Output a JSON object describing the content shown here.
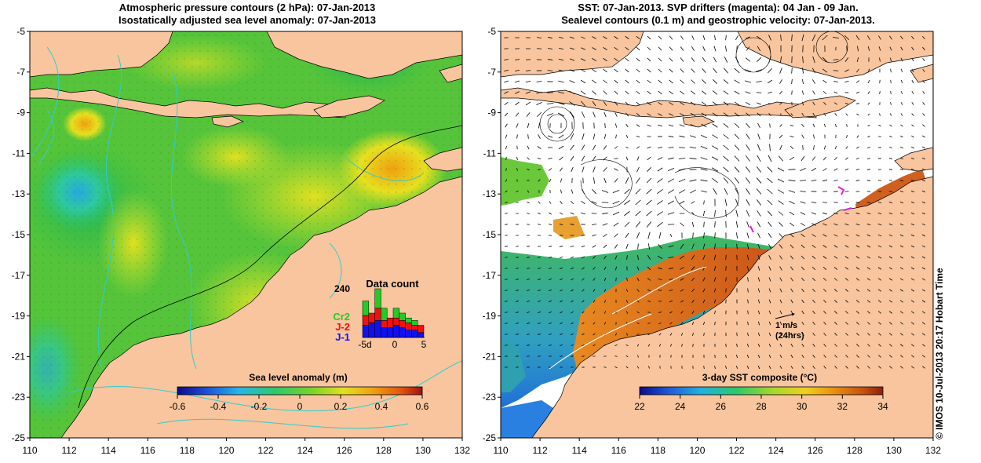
{
  "left_panel": {
    "title_line1": "Atmospheric pressure contours (2 hPa): 07-Jan-2013",
    "title_line2": "Isostatically adjusted sea level anomaly: 07-Jan-2013",
    "colorbar_title": "Sea level anomaly (m)",
    "colorbar_ticks": [
      "-0.6",
      "-0.4",
      "-0.2",
      "0",
      "0.2",
      "0.4",
      "0.6"
    ],
    "inset": {
      "title": "Data count",
      "ymax_label": "240",
      "legend": [
        {
          "label": "Cr2",
          "color": "#22cc22"
        },
        {
          "label": "J-2",
          "color": "#ee1111"
        },
        {
          "label": "J-1",
          "color": "#1111ee"
        }
      ],
      "x_ticks": [
        "-5d",
        "0",
        "5"
      ],
      "bars": [
        {
          "blue": 0.25,
          "red": 0.2,
          "green": 0.3
        },
        {
          "blue": 0.3,
          "red": 0.2,
          "green": 0.0
        },
        {
          "blue": 0.35,
          "red": 0.25,
          "green": 0.4
        },
        {
          "blue": 0.2,
          "red": 0.15,
          "green": 0.25
        },
        {
          "blue": 0.2,
          "red": 0.2,
          "green": 0.0
        },
        {
          "blue": 0.25,
          "red": 0.15,
          "green": 0.2
        },
        {
          "blue": 0.2,
          "red": 0.15,
          "green": 0.15
        },
        {
          "blue": 0.15,
          "red": 0.15,
          "green": 0.1
        },
        {
          "blue": 0.15,
          "red": 0.1,
          "green": 0.1
        },
        {
          "blue": 0.1,
          "red": 0.15,
          "green": 0.0
        }
      ]
    }
  },
  "right_panel": {
    "title_line1": "SST: 07-Jan-2013. SVP drifters (magenta): 04 Jan - 09 Jan.",
    "title_line2": "Sealevel contours (0.1 m) and geostrophic velocity: 07-Jan-2013.",
    "colorbar_title": "3-day SST composite (°C)",
    "colorbar_ticks": [
      "22",
      "24",
      "26",
      "28",
      "30",
      "32",
      "34"
    ],
    "scale_arrow_label1": "1 m/s",
    "scale_arrow_label2": "(24hrs)"
  },
  "axes": {
    "lat_labels": [
      "-5",
      "-7",
      "-9",
      "-11",
      "-13",
      "-15",
      "-17",
      "-19",
      "-21",
      "-23",
      "-25"
    ],
    "lon_labels": [
      "110",
      "112",
      "114",
      "116",
      "118",
      "120",
      "122",
      "124",
      "126",
      "128",
      "130",
      "132"
    ]
  },
  "copyright": "© IMOS 10-Jul-2013 20:17 Hobart Time",
  "colors": {
    "land": "#f8c59e",
    "ocean_green": "#33bb33",
    "colorbar_sla": [
      "#0a0a8a",
      "#1e4fd8",
      "#26b6e8",
      "#2ec86a",
      "#7ad42a",
      "#e6e020",
      "#f0a010",
      "#e05010",
      "#a01010"
    ],
    "colorbar_sst": [
      "#0a0a8a",
      "#1e5ad8",
      "#22b0e0",
      "#2ec86a",
      "#a8d82a",
      "#f0d020",
      "#e89010",
      "#c85010",
      "#902008"
    ]
  }
}
